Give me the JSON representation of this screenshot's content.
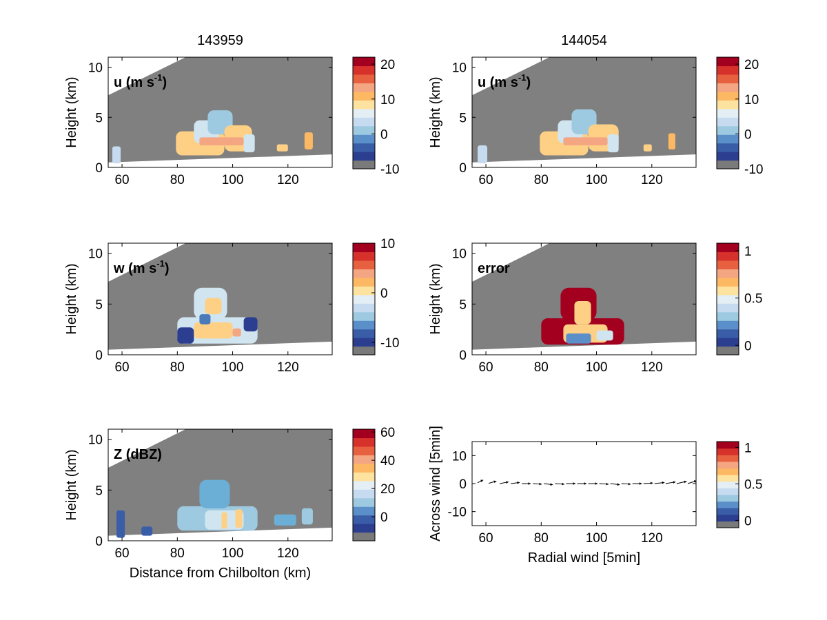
{
  "chart_data": [
    {
      "type": "heatmap",
      "panel": "u-left",
      "column_title": "143959",
      "label": "u (m s",
      "label_sup": "-1",
      "label_close": ")",
      "ylabel": "Height (km)",
      "xlabel": "",
      "xlim": [
        55,
        136
      ],
      "ylim": [
        0,
        11
      ],
      "xticks": [
        "60",
        "80",
        "100",
        "120"
      ],
      "yticks": [
        "0",
        "5",
        "10"
      ],
      "colorbar_range": [
        -10,
        22
      ],
      "colorbar_ticks": [
        "20",
        "10",
        "0",
        "-10"
      ],
      "colorbar_tick_values": [
        20,
        10,
        0,
        -10
      ],
      "regions": [
        {
          "x": [
            56.5,
            59.5
          ],
          "y": [
            0.4,
            2.1
          ],
          "color": "#c6dbef"
        },
        {
          "x": [
            79.5,
            97
          ],
          "y": [
            1.2,
            3.6
          ],
          "color": "#fdd085"
        },
        {
          "x": [
            86,
            95
          ],
          "y": [
            2.4,
            4.7
          ],
          "color": "#d1e5f0"
        },
        {
          "x": [
            91,
            100
          ],
          "y": [
            3.3,
            5.7
          ],
          "color": "#9ecae1"
        },
        {
          "x": [
            97,
            107
          ],
          "y": [
            1.6,
            4.2
          ],
          "color": "#fdd085"
        },
        {
          "x": [
            88,
            104
          ],
          "y": [
            2.2,
            3.0
          ],
          "color": "#f4a582"
        },
        {
          "x": [
            104,
            108
          ],
          "y": [
            1.5,
            3.3
          ],
          "color": "#d1e5f0"
        },
        {
          "x": [
            116,
            120
          ],
          "y": [
            1.6,
            2.3
          ],
          "color": "#fdd085"
        },
        {
          "x": [
            126,
            129
          ],
          "y": [
            1.8,
            3.5
          ],
          "color": "#fdb863"
        }
      ]
    },
    {
      "type": "heatmap",
      "panel": "u-right",
      "column_title": "144054",
      "label": "u (m s",
      "label_sup": "-1",
      "label_close": ")",
      "ylabel": "Height (km)",
      "xlabel": "",
      "xlim": [
        55,
        136
      ],
      "ylim": [
        0,
        11
      ],
      "xticks": [
        "60",
        "80",
        "100",
        "120"
      ],
      "yticks": [
        "0",
        "5",
        "10"
      ],
      "colorbar_range": [
        -10,
        22
      ],
      "colorbar_ticks": [
        "20",
        "10",
        "0",
        "-10"
      ],
      "colorbar_tick_values": [
        20,
        10,
        0,
        -10
      ],
      "regions": [
        {
          "x": [
            57,
            60.5
          ],
          "y": [
            0.4,
            2.2
          ],
          "color": "#c6dbef"
        },
        {
          "x": [
            79.5,
            97
          ],
          "y": [
            1.2,
            3.6
          ],
          "color": "#fdd085"
        },
        {
          "x": [
            86,
            95
          ],
          "y": [
            2.4,
            4.7
          ],
          "color": "#d1e5f0"
        },
        {
          "x": [
            91,
            100
          ],
          "y": [
            3.3,
            5.8
          ],
          "color": "#9ecae1"
        },
        {
          "x": [
            97,
            108
          ],
          "y": [
            1.6,
            4.3
          ],
          "color": "#fdd085"
        },
        {
          "x": [
            88,
            104
          ],
          "y": [
            2.2,
            3.0
          ],
          "color": "#f4a582"
        },
        {
          "x": [
            104,
            108
          ],
          "y": [
            1.5,
            3.3
          ],
          "color": "#d1e5f0"
        },
        {
          "x": [
            117,
            120
          ],
          "y": [
            1.6,
            2.3
          ],
          "color": "#fdd085"
        },
        {
          "x": [
            126,
            128.5
          ],
          "y": [
            1.8,
            3.4
          ],
          "color": "#fdb863"
        }
      ]
    },
    {
      "type": "heatmap",
      "panel": "w-left",
      "label": "w (m s",
      "label_sup": "-1",
      "label_close": ")",
      "ylabel": "Height (km)",
      "xlabel": "",
      "xlim": [
        55,
        136
      ],
      "ylim": [
        0,
        11
      ],
      "xticks": [
        "60",
        "80",
        "100",
        "120"
      ],
      "yticks": [
        "0",
        "5",
        "10"
      ],
      "colorbar_range": [
        -12.5,
        10
      ],
      "colorbar_ticks": [
        "10",
        "0",
        "-10"
      ],
      "colorbar_tick_values": [
        10,
        0,
        -10
      ],
      "regions": [
        {
          "x": [
            80,
            109
          ],
          "y": [
            1.1,
            3.7
          ],
          "color": "#d1e5f0"
        },
        {
          "x": [
            86,
            98
          ],
          "y": [
            3.5,
            6.6
          ],
          "color": "#d1e5f0"
        },
        {
          "x": [
            80,
            86
          ],
          "y": [
            1.1,
            2.7
          ],
          "color": "#2c3e8f"
        },
        {
          "x": [
            104,
            109
          ],
          "y": [
            2.3,
            3.7
          ],
          "color": "#2c3e8f"
        },
        {
          "x": [
            86,
            100
          ],
          "y": [
            1.6,
            3.2
          ],
          "color": "#fdd085"
        },
        {
          "x": [
            90,
            96
          ],
          "y": [
            4.0,
            5.6
          ],
          "color": "#fdd085"
        },
        {
          "x": [
            100,
            103
          ],
          "y": [
            1.8,
            2.6
          ],
          "color": "#f4a582"
        },
        {
          "x": [
            88,
            92
          ],
          "y": [
            3.0,
            4.0
          ],
          "color": "#4a7ab8"
        }
      ]
    },
    {
      "type": "heatmap",
      "panel": "error",
      "label": "error",
      "label_sup": "",
      "label_close": "",
      "ylabel": "Height (km)",
      "xlabel": "",
      "xlim": [
        55,
        136
      ],
      "ylim": [
        0,
        11
      ],
      "xticks": [
        "60",
        "80",
        "100",
        "120"
      ],
      "yticks": [
        "0",
        "5",
        "10"
      ],
      "colorbar_range": [
        -0.1,
        1.08
      ],
      "colorbar_ticks": [
        "1",
        "0.5",
        "0"
      ],
      "colorbar_tick_values": [
        1,
        0.5,
        0
      ],
      "regions": [
        {
          "x": [
            80,
            110
          ],
          "y": [
            1.0,
            3.6
          ],
          "color": "#a3001f"
        },
        {
          "x": [
            87,
            100
          ],
          "y": [
            3.4,
            6.6
          ],
          "color": "#a3001f"
        },
        {
          "x": [
            88,
            104
          ],
          "y": [
            1.2,
            3.0
          ],
          "color": "#fdd085"
        },
        {
          "x": [
            92,
            98
          ],
          "y": [
            3.0,
            5.3
          ],
          "color": "#fdd085"
        },
        {
          "x": [
            89,
            98
          ],
          "y": [
            1.1,
            2.1
          ],
          "color": "#5b8fc9"
        },
        {
          "x": [
            100,
            106
          ],
          "y": [
            1.4,
            2.4
          ],
          "color": "#d1e5f0"
        }
      ]
    },
    {
      "type": "heatmap",
      "panel": "Z",
      "label": "Z (dBZ)",
      "label_sup": "",
      "label_close": "",
      "ylabel": "Height (km)",
      "xlabel": "Distance from Chilbolton (km)",
      "xlim": [
        55,
        136
      ],
      "ylim": [
        0,
        11
      ],
      "xticks": [
        "60",
        "80",
        "100",
        "120"
      ],
      "yticks": [
        "0",
        "5",
        "10"
      ],
      "colorbar_range": [
        -17,
        62
      ],
      "colorbar_ticks": [
        "60",
        "40",
        "20",
        "0"
      ],
      "colorbar_tick_values": [
        60,
        40,
        20,
        0
      ],
      "regions": [
        {
          "x": [
            58,
            61
          ],
          "y": [
            0.3,
            3.0
          ],
          "color": "#3a5da8"
        },
        {
          "x": [
            67,
            71
          ],
          "y": [
            0.5,
            1.4
          ],
          "color": "#3a5da8"
        },
        {
          "x": [
            80,
            109
          ],
          "y": [
            1.0,
            3.4
          ],
          "color": "#9ecae1"
        },
        {
          "x": [
            88,
            99
          ],
          "y": [
            3.2,
            6.0
          ],
          "color": "#6baed6"
        },
        {
          "x": [
            90,
            104
          ],
          "y": [
            1.1,
            3.0
          ],
          "color": "#d1e5f0"
        },
        {
          "x": [
            96,
            98
          ],
          "y": [
            1.2,
            2.8
          ],
          "color": "#fdd085"
        },
        {
          "x": [
            101,
            103.5
          ],
          "y": [
            1.3,
            3.1
          ],
          "color": "#fdd085"
        },
        {
          "x": [
            115,
            123
          ],
          "y": [
            1.5,
            2.6
          ],
          "color": "#6baed6"
        },
        {
          "x": [
            125,
            129
          ],
          "y": [
            1.6,
            3.2
          ],
          "color": "#9ecae1"
        }
      ]
    },
    {
      "type": "vector",
      "panel": "wind",
      "label": "",
      "ylabel": "Across wind [5min]",
      "xlabel": "Radial wind [5min]",
      "xlim": [
        55,
        136
      ],
      "ylim": [
        -15,
        15
      ],
      "xticks": [
        "60",
        "80",
        "100",
        "120"
      ],
      "yticks": [
        "10",
        "0",
        "-10"
      ],
      "colorbar_range": [
        -0.1,
        1.08
      ],
      "colorbar_ticks": [
        "1",
        "0.5",
        "0"
      ],
      "colorbar_tick_values": [
        1,
        0.5,
        0
      ],
      "arrows": [
        {
          "x": 57,
          "y": 0.3,
          "u": 1.0,
          "v": 0.5
        },
        {
          "x": 61,
          "y": 0.1,
          "u": 1.4,
          "v": 0.4
        },
        {
          "x": 65,
          "y": 0.0,
          "u": 1.6,
          "v": 0.3
        },
        {
          "x": 69,
          "y": 0.0,
          "u": 1.6,
          "v": 0.2
        },
        {
          "x": 73,
          "y": 0.0,
          "u": 1.6,
          "v": 0.0
        },
        {
          "x": 77,
          "y": 0.0,
          "u": 1.6,
          "v": -0.1
        },
        {
          "x": 81,
          "y": 0.0,
          "u": 1.6,
          "v": -0.2
        },
        {
          "x": 85,
          "y": 0.0,
          "u": 1.7,
          "v": -0.1
        },
        {
          "x": 89,
          "y": 0.0,
          "u": 1.7,
          "v": 0.0
        },
        {
          "x": 93,
          "y": 0.0,
          "u": 1.7,
          "v": 0.0
        },
        {
          "x": 97,
          "y": 0.0,
          "u": 1.7,
          "v": 0.0
        },
        {
          "x": 101,
          "y": 0.0,
          "u": 1.7,
          "v": -0.1
        },
        {
          "x": 105,
          "y": 0.0,
          "u": 1.7,
          "v": -0.2
        },
        {
          "x": 109,
          "y": 0.0,
          "u": 1.7,
          "v": -0.1
        },
        {
          "x": 113,
          "y": 0.0,
          "u": 1.7,
          "v": 0.0
        },
        {
          "x": 117,
          "y": 0.0,
          "u": 1.7,
          "v": 0.1
        },
        {
          "x": 121,
          "y": 0.0,
          "u": 1.8,
          "v": 0.2
        },
        {
          "x": 125,
          "y": 0.0,
          "u": 1.8,
          "v": 0.3
        },
        {
          "x": 129,
          "y": 0.0,
          "u": 1.8,
          "v": 0.4
        },
        {
          "x": 133,
          "y": 0.0,
          "u": 1.6,
          "v": 0.5
        }
      ]
    }
  ],
  "colormap": [
    "#7a7a7a",
    "#2c3e8f",
    "#3a5da8",
    "#5b8fc9",
    "#9ecae1",
    "#c6dbef",
    "#e4eef5",
    "#fde2a0",
    "#fdb863",
    "#f4a582",
    "#e7603f",
    "#d6322b",
    "#a3001f"
  ],
  "colors": {
    "no_data": "#808080",
    "background": "#ffffff",
    "axis": "#000000"
  }
}
